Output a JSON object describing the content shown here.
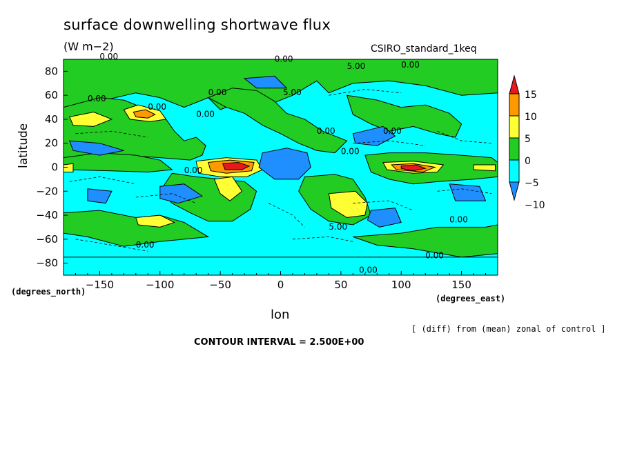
{
  "chart_data": {
    "type": "heatmap",
    "title": "surface downwelling shortwave flux",
    "units": "(W m−2)",
    "dataset": "CSIRO_standard_1keq",
    "xlabel": "lon",
    "ylabel": "latitude",
    "x_units": "(degrees_east)",
    "y_units": "(degrees_north)",
    "xlim": [
      -180,
      180
    ],
    "ylim": [
      -90,
      90
    ],
    "x_ticks": [
      -150,
      -100,
      -50,
      0,
      50,
      100,
      150
    ],
    "x_tick_labels": [
      "−150",
      "−100",
      "−50",
      "0",
      "50",
      "100",
      "150"
    ],
    "y_ticks": [
      80,
      60,
      40,
      20,
      0,
      -20,
      -40,
      -60,
      -80
    ],
    "y_tick_labels": [
      "80",
      "60",
      "40",
      "20",
      "0",
      "−20",
      "−40",
      "−60",
      "−80"
    ],
    "note": "[ (diff) from (mean) zonal of control ]",
    "contour_interval": "CONTOUR INTERVAL = 2.500E+00",
    "colorbar": {
      "levels": [
        -10,
        -5,
        0,
        5,
        10,
        15
      ],
      "labels": [
        "15",
        "10",
        "5",
        "0",
        "−5",
        "−10"
      ],
      "colors": [
        "#e41a1c",
        "#ff9900",
        "#ffff33",
        "#22cc22",
        "#00ffff",
        "#1f8fff"
      ]
    },
    "contour_labels": [
      "0.00",
      "0.00",
      "0.00",
      "0.00",
      "0.00",
      "5.00",
      "0.00",
      "5.00",
      "0.00",
      "0.00",
      "0.00",
      "0.00",
      "0.00",
      "0.00",
      "5.00",
      "0.00",
      "0.00",
      "0.00"
    ],
    "regions": [
      {
        "category": "below -10",
        "lon_center": 0,
        "lat_center": 0
      },
      {
        "category": "-10 to -5",
        "lon_center": -155,
        "lat_center": 15
      },
      {
        "category": "-10 to -5",
        "lon_center": -80,
        "lat_center": -20
      },
      {
        "category": "-10 to -5",
        "lon_center": -150,
        "lat_center": -20
      },
      {
        "category": "-10 to -5",
        "lon_center": 75,
        "lat_center": 25
      },
      {
        "category": "-10 to -5",
        "lon_center": 85,
        "lat_center": -43
      },
      {
        "category": "-10 to -5",
        "lon_center": 150,
        "lat_center": -20
      },
      {
        "category": "-10 to -5",
        "lon_center": -15,
        "lat_center": 70
      },
      {
        "category": "10 to 15",
        "lon_center": -38,
        "lat_center": 0
      },
      {
        "category": "10 to 15",
        "lon_center": 108,
        "lat_center": -2
      },
      {
        "category": "5 to 10",
        "lon_center": -115,
        "lat_center": 43
      },
      {
        "category": "5 to 10",
        "lon_center": -45,
        "lat_center": -15
      },
      {
        "category": "5 to 10",
        "lon_center": 55,
        "lat_center": -30
      },
      {
        "category": "5 to 10",
        "lon_center": -110,
        "lat_center": -45
      },
      {
        "category": "5 to 10",
        "lon_center": -150,
        "lat_center": 37
      }
    ]
  }
}
